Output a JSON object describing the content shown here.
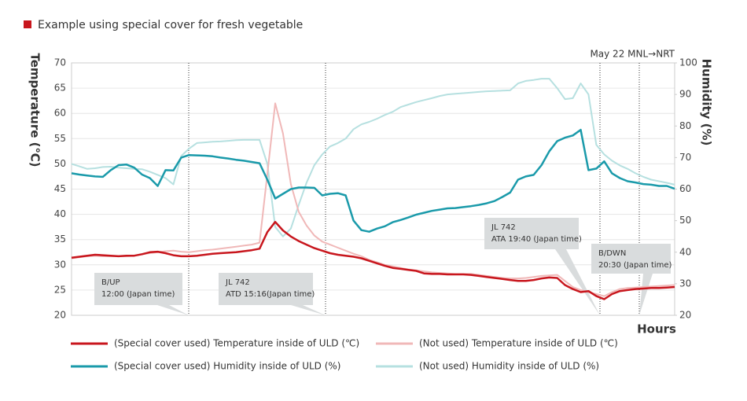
{
  "chart_data": {
    "type": "line",
    "title": "Example using special cover for fresh vegetable",
    "y_label": "Temperature (℃)",
    "y2_label": "Humidity (%)",
    "x_label": "Hours",
    "route_label": "May 22  MNL→NRT",
    "ylim": [
      20,
      70
    ],
    "yticks": [
      20,
      25,
      30,
      35,
      40,
      45,
      50,
      55,
      60,
      65,
      70
    ],
    "y2lim": [
      20,
      100
    ],
    "y2ticks": [
      20,
      30,
      40,
      50,
      60,
      70,
      80,
      90,
      100
    ],
    "grid": true,
    "annotations": [
      {
        "lines": [
          "B/UP",
          "12:00 (Japan time)"
        ]
      },
      {
        "lines": [
          "JL 742",
          "ATD 15:16(Japan time)"
        ]
      },
      {
        "lines": [
          "JL 742",
          "ATA 19:40 (Japan time)"
        ]
      },
      {
        "lines": [
          "B/DWN",
          "20:30 (Japan time)"
        ]
      }
    ],
    "series": [
      {
        "name": "(Special cover used) Temperature inside of ULD (℃)",
        "color": "#c8161d",
        "axis": "y",
        "values": [
          31.4,
          31.6,
          31.8,
          32,
          31.9,
          31.8,
          31.7,
          31.8,
          31.8,
          32.1,
          32.5,
          32.6,
          32.3,
          31.9,
          31.7,
          31.7,
          31.8,
          32,
          32.2,
          32.3,
          32.4,
          32.5,
          32.7,
          32.9,
          33.2,
          36.5,
          38.5,
          36.8,
          35.6,
          34.7,
          34,
          33.3,
          32.8,
          32.3,
          32,
          31.8,
          31.6,
          31.3,
          30.8,
          30.3,
          29.8,
          29.4,
          29.2,
          29,
          28.8,
          28.3,
          28.2,
          28.2,
          28.1,
          28.1,
          28.1,
          28,
          27.8,
          27.6,
          27.4,
          27.2,
          27,
          26.8,
          26.8,
          27,
          27.3,
          27.5,
          27.4,
          26,
          25.2,
          24.6,
          24.8,
          23.8,
          23.2,
          24.2,
          24.8,
          25,
          25.2,
          25.3,
          25.4,
          25.4,
          25.5,
          25.6
        ]
      },
      {
        "name": "(Not used) Temperature inside of ULD (℃)",
        "color": "#f0b8b8",
        "axis": "y",
        "values": [
          31.3,
          31.5,
          31.7,
          31.8,
          31.7,
          31.7,
          31.7,
          31.7,
          31.8,
          32.1,
          32.3,
          32.5,
          32.7,
          32.8,
          32.6,
          32.5,
          32.7,
          32.9,
          33,
          33.2,
          33.4,
          33.6,
          33.8,
          34,
          34.4,
          48,
          62,
          56,
          46,
          40.5,
          37.8,
          35.8,
          34.6,
          34,
          33.4,
          32.8,
          32.2,
          31.7,
          31,
          30.5,
          30,
          29.7,
          29.4,
          29.1,
          28.9,
          28.7,
          28.5,
          28.4,
          28.3,
          28.2,
          28.2,
          28.2,
          28,
          27.8,
          27.6,
          27.4,
          27.3,
          27.3,
          27.4,
          27.6,
          27.8,
          27.9,
          28,
          26.8,
          25.6,
          25,
          24.6,
          24.2,
          23.8,
          24.6,
          25.2,
          25.4,
          25.5,
          25.6,
          25.7,
          25.8,
          25.9,
          26
        ]
      },
      {
        "name": "(Special cover used) Humidity inside of ULD (%)",
        "color": "#1a9aaa",
        "axis": "y2",
        "values": [
          65,
          64.6,
          64.3,
          64,
          63.9,
          66,
          67.6,
          67.8,
          66.8,
          64.6,
          63.5,
          61,
          66,
          65.9,
          70,
          70.8,
          70.7,
          70.6,
          70.4,
          70,
          69.7,
          69.3,
          69,
          68.6,
          68.2,
          63,
          57,
          58.5,
          60,
          60.5,
          60.5,
          60.4,
          58,
          58.5,
          58.7,
          58,
          50,
          47,
          46.5,
          47.5,
          48.2,
          49.5,
          50.2,
          51,
          51.9,
          52.5,
          53.1,
          53.5,
          53.9,
          54,
          54.3,
          54.6,
          55,
          55.5,
          56.2,
          57.5,
          58.9,
          63,
          64,
          64.5,
          67.6,
          72,
          75.2,
          76.3,
          77,
          78.8,
          66,
          66.5,
          68.8,
          65,
          63.5,
          62.5,
          62.1,
          61.6,
          61.4,
          61,
          61,
          60.1
        ]
      },
      {
        "name": "(Not used) Humidity inside of ULD (%)",
        "color": "#b6e0e0",
        "axis": "y2",
        "values": [
          68,
          67.2,
          66.4,
          66.6,
          67,
          67.1,
          66.8,
          66.6,
          66.4,
          66.3,
          65.5,
          64.5,
          63.5,
          61.5,
          70.5,
          72.8,
          74.6,
          74.8,
          75,
          75.1,
          75.3,
          75.5,
          75.6,
          75.6,
          75.6,
          68,
          48,
          45,
          47.5,
          55,
          62,
          67.6,
          71,
          73.5,
          74.6,
          76,
          79,
          80.5,
          81.3,
          82.3,
          83.5,
          84.5,
          86,
          86.8,
          87.6,
          88.2,
          88.8,
          89.5,
          90,
          90.2,
          90.4,
          90.6,
          90.8,
          91,
          91.1,
          91.2,
          91.3,
          93.5,
          94.3,
          94.6,
          95,
          95,
          92,
          88.5,
          88.8,
          93.5,
          90,
          74,
          71,
          69,
          67.5,
          66.4,
          65,
          63.9,
          63,
          62.5,
          62,
          61.4
        ]
      }
    ]
  }
}
